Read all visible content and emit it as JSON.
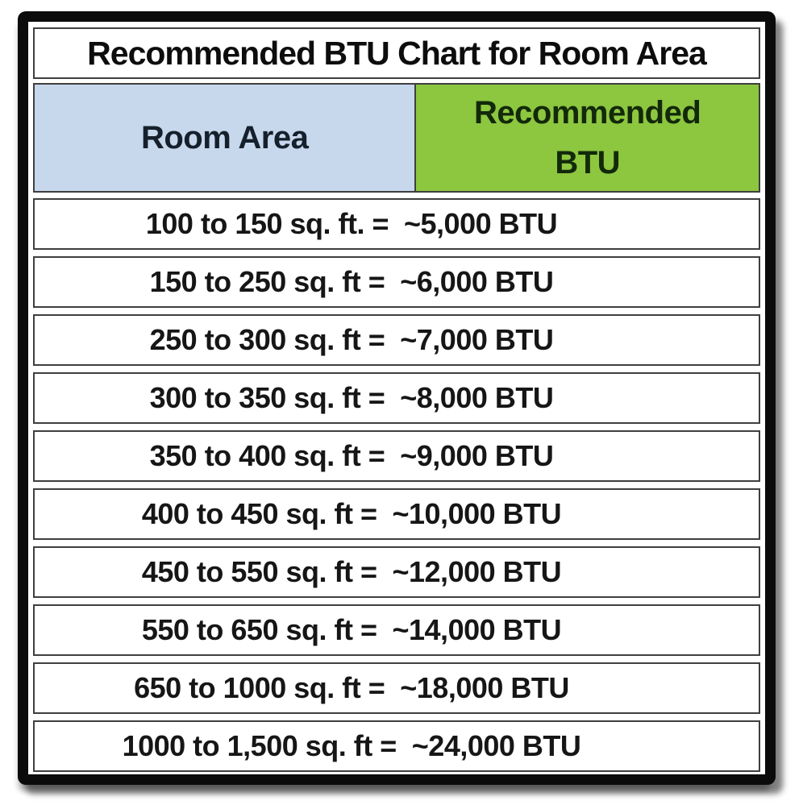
{
  "title": "Recommended BTU Chart for Room Area",
  "header": {
    "room_area": "Room Area",
    "btu_line1": "Recommended",
    "btu_line2": "BTU"
  },
  "rows": [
    {
      "text": "100 to 150 sq. ft. =  ~5,000 BTU"
    },
    {
      "text": "150 to 250 sq. ft =  ~6,000 BTU"
    },
    {
      "text": "250 to 300 sq. ft =  ~7,000 BTU"
    },
    {
      "text": "300 to 350 sq. ft =  ~8,000 BTU"
    },
    {
      "text": "350 to 400 sq. ft =  ~9,000 BTU"
    },
    {
      "text": "400 to 450 sq. ft =  ~10,000 BTU"
    },
    {
      "text": "450 to 550 sq. ft =  ~12,000 BTU"
    },
    {
      "text": "550 to 650 sq. ft =  ~14,000 BTU"
    },
    {
      "text": "650 to 1000 sq. ft =  ~18,000 BTU"
    },
    {
      "text": "1000 to 1,500 sq. ft =  ~24,000 BTU"
    }
  ],
  "colors": {
    "frame": "#0b0b0b",
    "room_area_header_bg": "#c7d8ec",
    "btu_header_bg": "#8dc63f",
    "cell_border": "#3f3f3f",
    "text": "#121212"
  },
  "chart_data": {
    "type": "table",
    "title": "Recommended BTU Chart for Room Area",
    "columns": [
      "Room Area",
      "Recommended BTU"
    ],
    "rows": [
      [
        "100 to 150 sq. ft.",
        "~5,000 BTU"
      ],
      [
        "150 to 250 sq. ft",
        "~6,000 BTU"
      ],
      [
        "250 to 300 sq. ft",
        "~7,000 BTU"
      ],
      [
        "300 to 350 sq. ft",
        "~8,000 BTU"
      ],
      [
        "350 to 400 sq. ft",
        "~9,000 BTU"
      ],
      [
        "400 to 450 sq. ft",
        "~10,000 BTU"
      ],
      [
        "450 to 550 sq. ft",
        "~12,000 BTU"
      ],
      [
        "550 to 650 sq. ft",
        "~14,000 BTU"
      ],
      [
        "650 to 1000 sq. ft",
        "~18,000 BTU"
      ],
      [
        "1000 to 1,500 sq. ft",
        "~24,000 BTU"
      ]
    ],
    "room_area_sqft_ranges": [
      [
        100,
        150
      ],
      [
        150,
        250
      ],
      [
        250,
        300
      ],
      [
        300,
        350
      ],
      [
        350,
        400
      ],
      [
        400,
        450
      ],
      [
        450,
        550
      ],
      [
        550,
        650
      ],
      [
        650,
        1000
      ],
      [
        1000,
        1500
      ]
    ],
    "btu_values": [
      5000,
      6000,
      7000,
      8000,
      9000,
      10000,
      12000,
      14000,
      18000,
      24000
    ],
    "layout": "bordered table, thick black outer frame with drop shadow, title row spanning both columns, left header pale blue, right header green, data rows merged full-width"
  }
}
